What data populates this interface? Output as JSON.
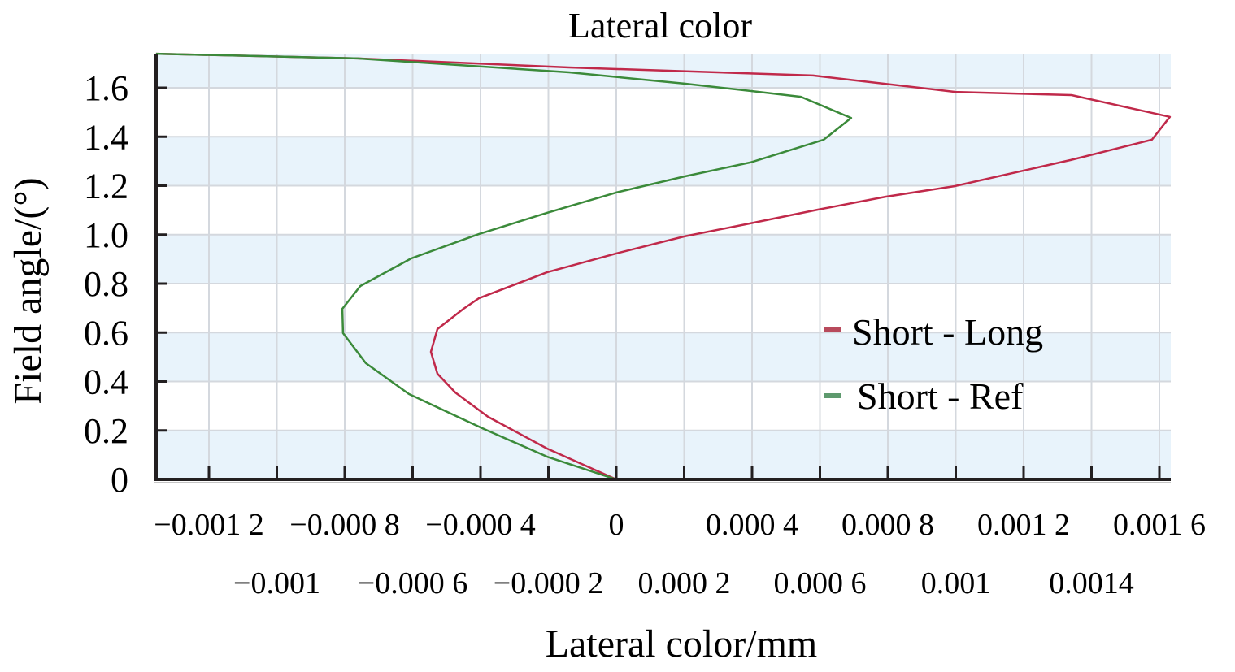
{
  "chart_data": {
    "type": "line",
    "title": "Lateral color",
    "xlabel": "Lateral color/mm",
    "ylabel": "Field angle/(°)",
    "xlim": [
      -0.001356,
      0.001636
    ],
    "ylim": [
      0,
      1.74
    ],
    "grid": true,
    "yticks": [
      0,
      0.2,
      0.4,
      0.6,
      0.8,
      1.0,
      1.2,
      1.4,
      1.6
    ],
    "ytick_labels": [
      "0",
      "0.2",
      "0.4",
      "0.6",
      "0.8",
      "1.0",
      "1.2",
      "1.4",
      "1.6"
    ],
    "xticks_row1": [
      -0.0012,
      -0.0008,
      -0.0004,
      0,
      0.0004,
      0.0008,
      0.0012,
      0.0016
    ],
    "xtick_labels_row1": [
      "−0.001 2",
      "−0.000 8",
      "−0.000 4",
      "0",
      "0.000 4",
      "0.000 8",
      "0.001 2",
      "0.001 6"
    ],
    "xticks_row2": [
      -0.001,
      -0.0006,
      -0.0002,
      0.0002,
      0.0006,
      0.001,
      0.0014
    ],
    "xtick_labels_row2": [
      "−0.001",
      "−0.000 6",
      "−0.000 2",
      "0.000 2",
      "0.000 6",
      "0.001",
      "0.0014"
    ],
    "legend_position": "right",
    "series": [
      {
        "name": "Short - Long",
        "color": "#c0294a",
        "legend_color": "#b84a5c",
        "x": [
          0,
          -0.000204,
          -0.000378,
          -0.000474,
          -0.000527,
          -0.000546,
          -0.000527,
          -0.00045,
          -0.000405,
          -0.000204,
          0,
          0.000201,
          0.000395,
          0.000594,
          0.000793,
          0.000996,
          0.001339,
          0.001578,
          0.001631,
          0.001341,
          0.000999,
          0.00058,
          -0.000139,
          -0.000762,
          -0.001356
        ],
        "y": [
          0,
          0.126,
          0.256,
          0.355,
          0.432,
          0.521,
          0.614,
          0.697,
          0.74,
          0.846,
          0.923,
          0.993,
          1.046,
          1.102,
          1.155,
          1.198,
          1.305,
          1.388,
          1.481,
          1.57,
          1.583,
          1.65,
          1.683,
          1.72,
          1.739
        ]
      },
      {
        "name": "Short - Ref",
        "color": "#3b8a3a",
        "legend_color": "#5e9a6e",
        "x": [
          0,
          -0.000204,
          -0.000395,
          -0.000611,
          -0.000738,
          -0.000805,
          -0.000807,
          -0.000754,
          -0.000604,
          -0.000405,
          -0.000204,
          0,
          0.000201,
          0.000395,
          0.000611,
          0.000692,
          0.000544,
          0.000395,
          0.000201,
          -0.000139,
          -0.000762,
          -0.001356
        ],
        "y": [
          0,
          0.093,
          0.209,
          0.349,
          0.475,
          0.598,
          0.697,
          0.79,
          0.903,
          1.002,
          1.089,
          1.172,
          1.238,
          1.295,
          1.388,
          1.477,
          1.563,
          1.587,
          1.617,
          1.663,
          1.72,
          1.739
        ]
      }
    ],
    "colors": {
      "band": "#e8f3fb",
      "grid": "#d4d8de",
      "axis": "#231f20"
    }
  }
}
